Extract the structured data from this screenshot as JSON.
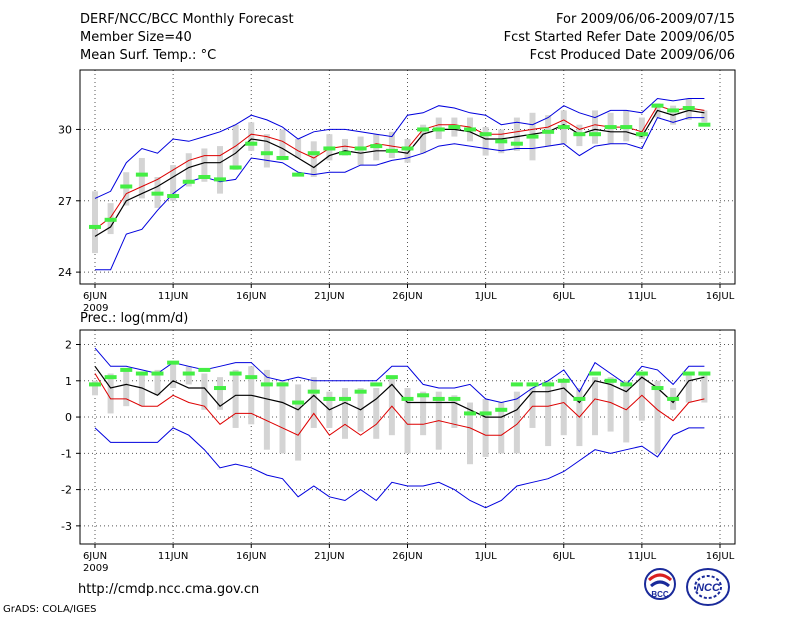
{
  "header": {
    "title": "DERF/NCC/BCC Monthly Forecast",
    "member": "Member Size=40",
    "variable": "Mean Surf. Temp.: °C",
    "period": "For 2009/06/06-2009/07/15",
    "refer": "Fcst Started Refer Date 2009/06/05",
    "produced": "Fcst Produced Date 2009/06/06"
  },
  "footer": {
    "url": "http://cmdp.ncc.cma.gov.cn",
    "grads": "GrADS: COLA/IGES",
    "bcc_logo_text": "BCC",
    "ncc_logo_text": "NCC"
  },
  "colors": {
    "background": "#ffffff",
    "envelope": "#0000dd",
    "mean": "#000000",
    "median": "#dd0000",
    "box": "#d4d4d4",
    "observed": "#44ee44",
    "grid": "#555555"
  },
  "chart_data": [
    {
      "type": "line",
      "title": "Mean Surf. Temp.: °C",
      "xlabel": "",
      "ylabel": "°C",
      "ylim": [
        23.5,
        32.5
      ],
      "yticks": [
        24,
        27,
        30
      ],
      "xlim": [
        1,
        40
      ],
      "xticks": [
        {
          "day": 1,
          "label": "6JUN"
        },
        {
          "day": 6,
          "label": "11JUN"
        },
        {
          "day": 11,
          "label": "16JUN"
        },
        {
          "day": 16,
          "label": "21JUN"
        },
        {
          "day": 21,
          "label": "26JUN"
        },
        {
          "day": 26,
          "label": "1JUL"
        },
        {
          "day": 31,
          "label": "6JUL"
        },
        {
          "day": 36,
          "label": "11JUL"
        },
        {
          "day": 41,
          "label": "16JUL"
        }
      ],
      "year_label": "2009",
      "grid": true,
      "series": [
        {
          "name": "max",
          "values": [
            24.1,
            24.1,
            25.6,
            25.8,
            26.6,
            27.3,
            27.8,
            28.0,
            27.8,
            27.9,
            28.8,
            28.7,
            28.6,
            28.2,
            28.1,
            28.2,
            28.2,
            28.5,
            28.5,
            28.7,
            28.8,
            29.0,
            29.3,
            29.4,
            29.3,
            29.2,
            29.1,
            29.2,
            29.2,
            29.3,
            29.4,
            28.9,
            29.3,
            29.4,
            29.4,
            29.2,
            30.5,
            30.3,
            30.5,
            30.5
          ]
        },
        {
          "name": "min",
          "values": [
            27.1,
            27.4,
            28.6,
            29.2,
            29.0,
            29.6,
            29.5,
            29.7,
            29.9,
            30.2,
            30.6,
            30.4,
            30.1,
            29.6,
            29.9,
            30.0,
            30.0,
            29.9,
            29.8,
            29.7,
            30.6,
            30.7,
            31.0,
            30.9,
            30.7,
            30.6,
            30.2,
            30.3,
            30.2,
            30.5,
            31.0,
            30.7,
            30.5,
            30.8,
            30.8,
            30.7,
            31.3,
            31.2,
            31.3,
            31.3
          ]
        },
        {
          "name": "mean",
          "values": [
            25.5,
            25.9,
            27.0,
            27.3,
            27.6,
            28.0,
            28.4,
            28.6,
            28.6,
            29.0,
            29.6,
            29.5,
            29.2,
            28.8,
            28.4,
            28.9,
            29.1,
            29.0,
            29.1,
            29.1,
            29.0,
            29.8,
            30.0,
            30.0,
            29.9,
            29.6,
            29.6,
            29.7,
            29.8,
            29.9,
            30.2,
            29.8,
            30.0,
            29.9,
            29.9,
            29.7,
            30.8,
            30.6,
            30.8,
            30.7
          ]
        },
        {
          "name": "median",
          "values": [
            25.8,
            26.3,
            27.3,
            27.6,
            27.9,
            28.3,
            28.7,
            28.9,
            28.9,
            29.3,
            29.8,
            29.7,
            29.5,
            29.1,
            28.8,
            29.2,
            29.3,
            29.2,
            29.4,
            29.3,
            29.2,
            30.0,
            30.2,
            30.2,
            30.1,
            29.8,
            29.8,
            29.9,
            30.0,
            30.1,
            30.4,
            30.0,
            30.2,
            30.1,
            30.1,
            29.9,
            31.0,
            30.8,
            30.9,
            30.8
          ]
        },
        {
          "name": "box_low",
          "values": [
            24.8,
            25.6,
            26.8,
            27.1,
            26.7,
            27.0,
            27.6,
            27.8,
            27.3,
            28.3,
            29.1,
            28.4,
            28.7,
            28.8,
            28.0,
            28.7,
            28.9,
            28.5,
            28.7,
            28.8,
            28.6,
            29.0,
            29.6,
            29.7,
            29.5,
            28.9,
            29.0,
            29.1,
            28.7,
            29.3,
            29.4,
            29.3,
            29.4,
            29.4,
            29.5,
            29.6,
            30.5,
            30.2,
            30.4,
            30.3
          ]
        },
        {
          "name": "box_high",
          "values": [
            27.4,
            26.9,
            28.2,
            28.8,
            28.0,
            28.5,
            29.0,
            29.2,
            29.3,
            30.2,
            30.3,
            29.8,
            30.0,
            29.6,
            29.5,
            29.8,
            29.6,
            29.7,
            29.8,
            29.9,
            29.6,
            30.2,
            30.5,
            30.5,
            30.5,
            30.1,
            30.0,
            30.5,
            30.7,
            30.6,
            30.8,
            30.2,
            30.8,
            30.7,
            30.8,
            30.5,
            31.1,
            31.0,
            31.3,
            30.8
          ]
        },
        {
          "name": "observed",
          "values": [
            25.9,
            26.2,
            27.6,
            28.1,
            27.3,
            27.2,
            27.8,
            28.0,
            27.9,
            28.4,
            29.4,
            29.0,
            28.8,
            28.1,
            29.0,
            29.2,
            29.0,
            29.2,
            29.3,
            29.1,
            29.2,
            30.0,
            30.0,
            30.1,
            30.0,
            29.8,
            29.5,
            29.4,
            29.7,
            29.9,
            30.1,
            29.8,
            29.8,
            30.1,
            30.1,
            29.8,
            31.0,
            30.8,
            30.9,
            30.2
          ]
        }
      ]
    },
    {
      "type": "line",
      "title": "Prec.: log(mm/d)",
      "xlabel": "",
      "ylabel": "log(mm/d)",
      "ylim": [
        -3.5,
        2.4
      ],
      "yticks": [
        -3,
        -2,
        -1,
        0,
        1,
        2
      ],
      "xlim": [
        1,
        40
      ],
      "xticks": [
        {
          "day": 1,
          "label": "6JUN"
        },
        {
          "day": 6,
          "label": "11JUN"
        },
        {
          "day": 11,
          "label": "16JUN"
        },
        {
          "day": 16,
          "label": "21JUN"
        },
        {
          "day": 21,
          "label": "26JUN"
        },
        {
          "day": 26,
          "label": "1JUL"
        },
        {
          "day": 31,
          "label": "6JUL"
        },
        {
          "day": 36,
          "label": "11JUL"
        },
        {
          "day": 41,
          "label": "16JUL"
        }
      ],
      "year_label": "2009",
      "grid": true,
      "series": [
        {
          "name": "max",
          "values": [
            1.9,
            1.4,
            1.4,
            1.3,
            1.2,
            1.5,
            1.4,
            1.3,
            1.4,
            1.5,
            1.5,
            1.1,
            1.0,
            1.1,
            1.0,
            1.0,
            1.0,
            1.0,
            1.0,
            1.4,
            1.4,
            0.9,
            0.8,
            0.8,
            0.9,
            0.5,
            0.4,
            0.5,
            0.8,
            1.0,
            1.3,
            0.7,
            1.5,
            1.2,
            0.9,
            1.4,
            1.3,
            0.9,
            1.4,
            1.4
          ]
        },
        {
          "name": "min",
          "values": [
            -0.3,
            -0.7,
            -0.7,
            -0.7,
            -0.7,
            -0.3,
            -0.5,
            -0.9,
            -1.4,
            -1.3,
            -1.4,
            -1.6,
            -1.7,
            -2.2,
            -1.9,
            -2.2,
            -2.3,
            -2.0,
            -2.3,
            -1.8,
            -1.9,
            -1.9,
            -1.8,
            -2.0,
            -2.3,
            -2.5,
            -2.3,
            -1.9,
            -1.8,
            -1.7,
            -1.5,
            -1.2,
            -0.9,
            -1.0,
            -0.9,
            -0.8,
            -1.1,
            -0.5,
            -0.3,
            -0.3
          ]
        },
        {
          "name": "mean",
          "values": [
            1.4,
            0.8,
            0.9,
            0.8,
            0.6,
            1.0,
            0.8,
            0.8,
            0.3,
            0.6,
            0.6,
            0.5,
            0.4,
            0.2,
            0.6,
            0.2,
            0.4,
            0.2,
            0.5,
            0.9,
            0.4,
            0.4,
            0.4,
            0.4,
            0.2,
            0.0,
            0.0,
            0.2,
            0.7,
            0.7,
            0.8,
            0.4,
            1.0,
            0.9,
            0.7,
            1.1,
            0.8,
            0.4,
            1.0,
            1.1
          ]
        },
        {
          "name": "median",
          "values": [
            1.2,
            0.5,
            0.5,
            0.3,
            0.3,
            0.6,
            0.4,
            0.3,
            -0.2,
            0.1,
            0.1,
            -0.1,
            -0.3,
            -0.5,
            0.1,
            -0.5,
            -0.2,
            -0.5,
            -0.2,
            0.3,
            -0.2,
            -0.2,
            -0.1,
            -0.2,
            -0.3,
            -0.5,
            -0.5,
            -0.2,
            0.3,
            0.3,
            0.4,
            0.0,
            0.5,
            0.4,
            0.2,
            0.6,
            0.2,
            -0.1,
            0.4,
            0.5
          ]
        },
        {
          "name": "box_low",
          "values": [
            0.6,
            0.1,
            0.3,
            0.3,
            0.6,
            0.8,
            0.9,
            0.2,
            0.2,
            -0.3,
            -0.2,
            -0.9,
            -1.0,
            -1.2,
            -0.3,
            -0.3,
            -0.6,
            -0.4,
            -0.6,
            -0.5,
            -1.0,
            -0.5,
            -0.9,
            -0.3,
            -1.3,
            -1.1,
            -1.0,
            -1.0,
            -0.3,
            -0.8,
            -0.5,
            -0.8,
            -0.5,
            -0.4,
            -0.7,
            -0.1,
            -1.0,
            0.2,
            0.4,
            0.4
          ]
        },
        {
          "name": "box_high",
          "values": [
            1.0,
            1.2,
            1.3,
            1.2,
            1.3,
            1.5,
            1.4,
            1.2,
            1.1,
            1.3,
            1.4,
            1.3,
            1.0,
            0.9,
            1.1,
            0.7,
            0.8,
            0.8,
            0.8,
            1.1,
            0.8,
            0.7,
            0.7,
            0.6,
            0.4,
            0.5,
            0.4,
            0.7,
            0.8,
            1.0,
            1.0,
            0.8,
            1.1,
            1.1,
            1.0,
            1.2,
            1.0,
            0.8,
            1.2,
            1.2
          ]
        },
        {
          "name": "observed",
          "values": [
            0.9,
            1.1,
            1.3,
            1.2,
            1.2,
            1.5,
            1.2,
            1.3,
            0.8,
            1.2,
            1.1,
            0.9,
            0.9,
            0.4,
            0.7,
            0.5,
            0.5,
            0.7,
            0.9,
            1.1,
            0.5,
            0.6,
            0.5,
            0.5,
            0.1,
            0.1,
            0.2,
            0.9,
            0.9,
            0.9,
            1.0,
            0.5,
            1.2,
            1.0,
            0.9,
            1.2,
            0.8,
            0.5,
            1.2,
            1.2
          ]
        }
      ]
    }
  ]
}
